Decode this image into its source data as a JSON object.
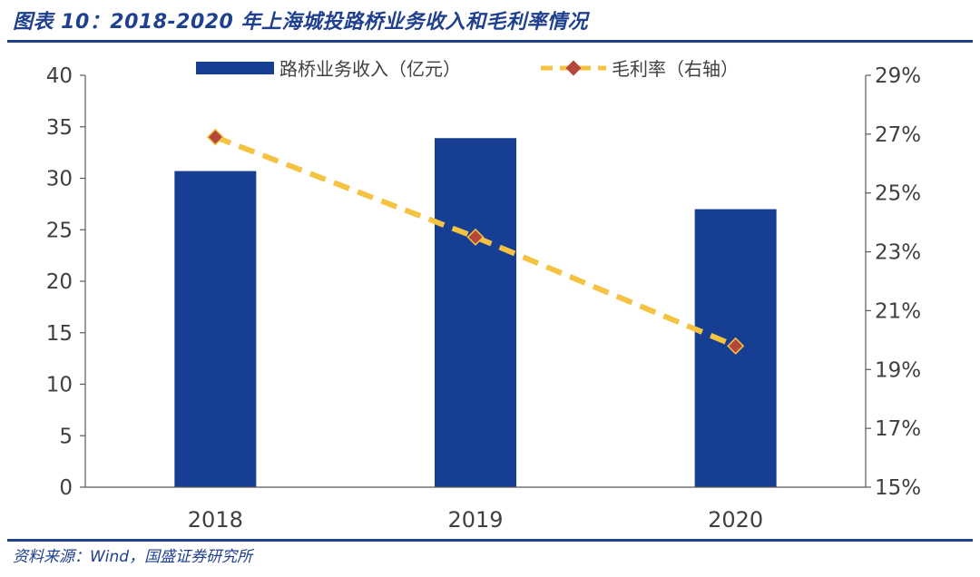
{
  "header": {
    "title": "图表 10：2018-2020 年上海城投路桥业务收入和毛利率情况"
  },
  "footer": {
    "source": "资料来源：Wind，国盛证券研究所"
  },
  "colors": {
    "bar": "#163f94",
    "line": "#f5c242",
    "marker": "#b5473a",
    "title": "#1f3f8f",
    "axis": "#595959"
  },
  "chart_data": {
    "type": "bar",
    "categories": [
      "2018",
      "2019",
      "2020"
    ],
    "series": [
      {
        "name": "路桥业务收入（亿元）",
        "type": "bar",
        "axis": "left",
        "values": [
          30.7,
          33.9,
          27.0
        ]
      },
      {
        "name": "毛利率（右轴）",
        "type": "line",
        "axis": "right",
        "values": [
          26.9,
          23.5,
          19.8
        ]
      }
    ],
    "y_left": {
      "min": 0,
      "max": 40,
      "step": 5,
      "ticks": [
        "0",
        "5",
        "10",
        "15",
        "20",
        "25",
        "30",
        "35",
        "40"
      ]
    },
    "y_right": {
      "min": 15,
      "max": 29,
      "step": 2,
      "ticks": [
        "15%",
        "17%",
        "19%",
        "21%",
        "23%",
        "25%",
        "27%",
        "29%"
      ]
    },
    "grid": false,
    "legend": "top"
  }
}
